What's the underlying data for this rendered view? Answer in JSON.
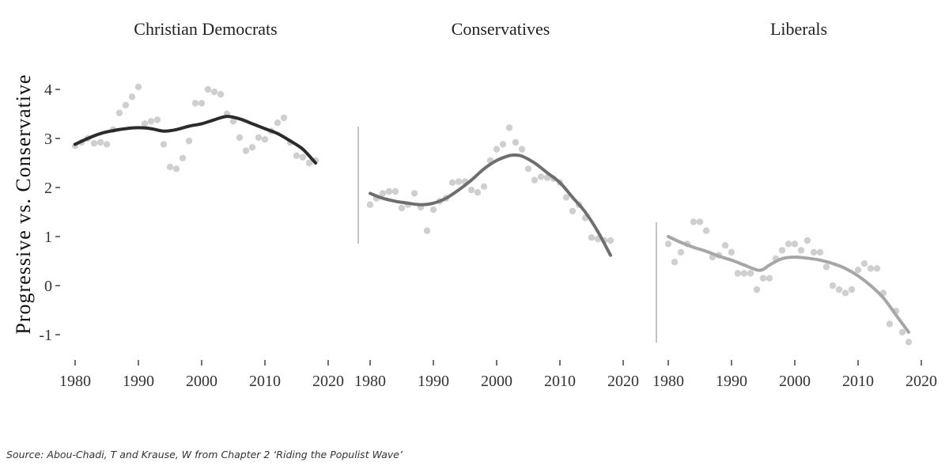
{
  "source_note": "Source: Abou-Chadi, T and Krause, W  from Chapter 2  ‘Riding the Populist Wave’",
  "colors": {
    "points": "#cfcfcf",
    "christian_democrats_line": "#2b2b2b",
    "conservatives_line": "#6e6e6e",
    "liberals_line": "#a6a6a6",
    "axis": "#888888"
  },
  "chart_data": {
    "type": "scatter",
    "ylabel": "Progressive vs. Conservative",
    "xlabel": "",
    "xlim": [
      1980,
      2020
    ],
    "ylim": [
      -1.2,
      4.2
    ],
    "x_ticks": [
      "1980",
      "1990",
      "2000",
      "2010",
      "2020"
    ],
    "y_ticks": [
      "4",
      "3",
      "2",
      "1",
      "0",
      "-1"
    ],
    "grid": false,
    "panels": [
      {
        "name": "Christian Democrats",
        "points": [
          [
            1980,
            2.85
          ],
          [
            1981,
            2.92
          ],
          [
            1982,
            3.0
          ],
          [
            1983,
            2.9
          ],
          [
            1984,
            2.92
          ],
          [
            1985,
            2.88
          ],
          [
            1986,
            3.18
          ],
          [
            1987,
            3.52
          ],
          [
            1988,
            3.68
          ],
          [
            1989,
            3.85
          ],
          [
            1990,
            4.05
          ],
          [
            1991,
            3.3
          ],
          [
            1992,
            3.35
          ],
          [
            1993,
            3.38
          ],
          [
            1994,
            2.88
          ],
          [
            1995,
            2.42
          ],
          [
            1996,
            2.38
          ],
          [
            1997,
            2.6
          ],
          [
            1998,
            2.95
          ],
          [
            1999,
            3.72
          ],
          [
            2000,
            3.72
          ],
          [
            2001,
            4.0
          ],
          [
            2002,
            3.95
          ],
          [
            2003,
            3.9
          ],
          [
            2004,
            3.5
          ],
          [
            2005,
            3.35
          ],
          [
            2006,
            3.02
          ],
          [
            2007,
            2.75
          ],
          [
            2008,
            2.82
          ],
          [
            2009,
            3.02
          ],
          [
            2010,
            2.98
          ],
          [
            2011,
            3.15
          ],
          [
            2012,
            3.32
          ],
          [
            2013,
            3.42
          ],
          [
            2014,
            2.92
          ],
          [
            2015,
            2.65
          ],
          [
            2016,
            2.62
          ],
          [
            2017,
            2.5
          ],
          [
            2018,
            2.55
          ]
        ],
        "trend": [
          [
            1980,
            2.88
          ],
          [
            1982,
            3.0
          ],
          [
            1984,
            3.1
          ],
          [
            1986,
            3.16
          ],
          [
            1988,
            3.2
          ],
          [
            1990,
            3.22
          ],
          [
            1992,
            3.2
          ],
          [
            1994,
            3.15
          ],
          [
            1996,
            3.18
          ],
          [
            1998,
            3.25
          ],
          [
            2000,
            3.3
          ],
          [
            2002,
            3.38
          ],
          [
            2004,
            3.45
          ],
          [
            2006,
            3.4
          ],
          [
            2008,
            3.3
          ],
          [
            2010,
            3.2
          ],
          [
            2012,
            3.1
          ],
          [
            2014,
            2.95
          ],
          [
            2016,
            2.78
          ],
          [
            2018,
            2.5
          ]
        ]
      },
      {
        "name": "Conservatives",
        "points": [
          [
            1980,
            1.65
          ],
          [
            1981,
            1.78
          ],
          [
            1982,
            1.88
          ],
          [
            1983,
            1.92
          ],
          [
            1984,
            1.92
          ],
          [
            1985,
            1.58
          ],
          [
            1986,
            1.65
          ],
          [
            1987,
            1.88
          ],
          [
            1988,
            1.6
          ],
          [
            1989,
            1.12
          ],
          [
            1990,
            1.55
          ],
          [
            1991,
            1.72
          ],
          [
            1992,
            1.78
          ],
          [
            1993,
            2.1
          ],
          [
            1994,
            2.12
          ],
          [
            1995,
            2.12
          ],
          [
            1996,
            1.95
          ],
          [
            1997,
            1.9
          ],
          [
            1998,
            2.02
          ],
          [
            1999,
            2.55
          ],
          [
            2000,
            2.78
          ],
          [
            2001,
            2.88
          ],
          [
            2002,
            3.22
          ],
          [
            2003,
            2.92
          ],
          [
            2004,
            2.78
          ],
          [
            2005,
            2.38
          ],
          [
            2006,
            2.15
          ],
          [
            2007,
            2.22
          ],
          [
            2008,
            2.2
          ],
          [
            2009,
            2.18
          ],
          [
            2010,
            2.1
          ],
          [
            2011,
            1.8
          ],
          [
            2012,
            1.52
          ],
          [
            2013,
            1.65
          ],
          [
            2014,
            1.38
          ],
          [
            2015,
            0.98
          ],
          [
            2016,
            0.95
          ],
          [
            2017,
            0.92
          ],
          [
            2018,
            0.92
          ]
        ],
        "trend": [
          [
            1980,
            1.88
          ],
          [
            1982,
            1.78
          ],
          [
            1984,
            1.72
          ],
          [
            1986,
            1.68
          ],
          [
            1988,
            1.65
          ],
          [
            1990,
            1.68
          ],
          [
            1992,
            1.78
          ],
          [
            1994,
            1.95
          ],
          [
            1996,
            2.15
          ],
          [
            1998,
            2.38
          ],
          [
            2000,
            2.55
          ],
          [
            2002,
            2.65
          ],
          [
            2003,
            2.66
          ],
          [
            2004,
            2.64
          ],
          [
            2006,
            2.5
          ],
          [
            2008,
            2.3
          ],
          [
            2010,
            2.1
          ],
          [
            2012,
            1.8
          ],
          [
            2014,
            1.5
          ],
          [
            2016,
            1.1
          ],
          [
            2018,
            0.62
          ]
        ]
      },
      {
        "name": "Liberals",
        "points": [
          [
            1980,
            0.85
          ],
          [
            1981,
            0.48
          ],
          [
            1982,
            0.68
          ],
          [
            1983,
            0.85
          ],
          [
            1984,
            1.3
          ],
          [
            1985,
            1.3
          ],
          [
            1986,
            1.12
          ],
          [
            1987,
            0.58
          ],
          [
            1988,
            0.62
          ],
          [
            1989,
            0.82
          ],
          [
            1990,
            0.68
          ],
          [
            1991,
            0.25
          ],
          [
            1992,
            0.25
          ],
          [
            1993,
            0.25
          ],
          [
            1994,
            -0.08
          ],
          [
            1995,
            0.15
          ],
          [
            1996,
            0.15
          ],
          [
            1997,
            0.55
          ],
          [
            1998,
            0.72
          ],
          [
            1999,
            0.85
          ],
          [
            2000,
            0.85
          ],
          [
            2001,
            0.72
          ],
          [
            2002,
            0.92
          ],
          [
            2003,
            0.68
          ],
          [
            2004,
            0.68
          ],
          [
            2005,
            0.38
          ],
          [
            2006,
            0.0
          ],
          [
            2007,
            -0.08
          ],
          [
            2008,
            -0.15
          ],
          [
            2009,
            -0.08
          ],
          [
            2010,
            0.32
          ],
          [
            2011,
            0.45
          ],
          [
            2012,
            0.35
          ],
          [
            2013,
            0.35
          ],
          [
            2014,
            -0.15
          ],
          [
            2015,
            -0.78
          ],
          [
            2016,
            -0.52
          ],
          [
            2017,
            -0.95
          ],
          [
            2018,
            -1.15
          ]
        ],
        "trend": [
          [
            1980,
            1.0
          ],
          [
            1982,
            0.88
          ],
          [
            1984,
            0.78
          ],
          [
            1986,
            0.7
          ],
          [
            1988,
            0.6
          ],
          [
            1990,
            0.52
          ],
          [
            1992,
            0.42
          ],
          [
            1994,
            0.32
          ],
          [
            1995,
            0.33
          ],
          [
            1996,
            0.42
          ],
          [
            1998,
            0.55
          ],
          [
            2000,
            0.58
          ],
          [
            2002,
            0.56
          ],
          [
            2004,
            0.52
          ],
          [
            2006,
            0.45
          ],
          [
            2008,
            0.35
          ],
          [
            2010,
            0.2
          ],
          [
            2012,
            0.0
          ],
          [
            2014,
            -0.25
          ],
          [
            2016,
            -0.6
          ],
          [
            2018,
            -0.95
          ]
        ]
      }
    ]
  }
}
